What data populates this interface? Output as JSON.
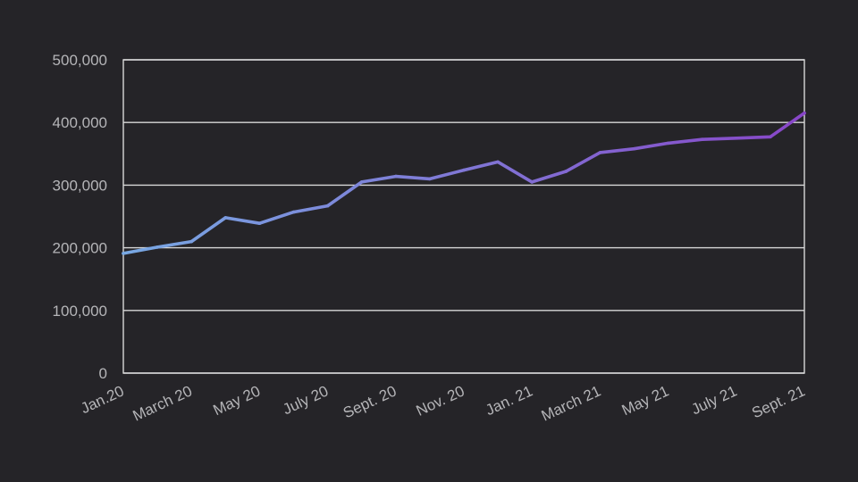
{
  "chart_data": {
    "type": "line",
    "title": "",
    "xlabel": "",
    "ylabel": "",
    "ylim": [
      0,
      500000
    ],
    "yticks": [
      0,
      100000,
      200000,
      300000,
      400000,
      500000
    ],
    "ytick_labels": [
      "0",
      "100,000",
      "200,000",
      "300,000",
      "400,000",
      "500,000"
    ],
    "grid": true,
    "legend": "none",
    "x_tick_labels": [
      {
        "index": 0,
        "label": "Jan.20"
      },
      {
        "index": 2,
        "label": "March 20"
      },
      {
        "index": 4,
        "label": "May 20"
      },
      {
        "index": 6,
        "label": "July 20"
      },
      {
        "index": 8,
        "label": "Sept. 20"
      },
      {
        "index": 10,
        "label": "Nov. 20"
      },
      {
        "index": 12,
        "label": "Jan. 21"
      },
      {
        "index": 14,
        "label": "March 21"
      },
      {
        "index": 16,
        "label": "May 21"
      },
      {
        "index": 18,
        "label": "July 21"
      },
      {
        "index": 20,
        "label": "Sept. 21"
      }
    ],
    "x": [
      "Jan. 20",
      "Feb. 20",
      "March 20",
      "Apr. 20",
      "May 20",
      "June 20",
      "July 20",
      "Aug. 20",
      "Sept. 20",
      "Oct. 20",
      "Nov. 20",
      "Dec. 20",
      "Jan. 21",
      "Feb. 21",
      "March 21",
      "Apr. 21",
      "May 21",
      "June 21",
      "July 21",
      "Aug. 21",
      "Sept. 21"
    ],
    "series": [
      {
        "name": "",
        "values": [
          191000,
          201000,
          210000,
          248000,
          239000,
          257000,
          267000,
          305000,
          314000,
          310000,
          324000,
          337000,
          305000,
          322000,
          352000,
          358000,
          367000,
          373000,
          375000,
          377000,
          415000
        ],
        "color_start": "#78a8e3",
        "color_end": "#8846c8"
      }
    ]
  },
  "colors": {
    "background": "#252428",
    "grid": "#d8d8d8",
    "tick_text": "#b5b5b8"
  }
}
